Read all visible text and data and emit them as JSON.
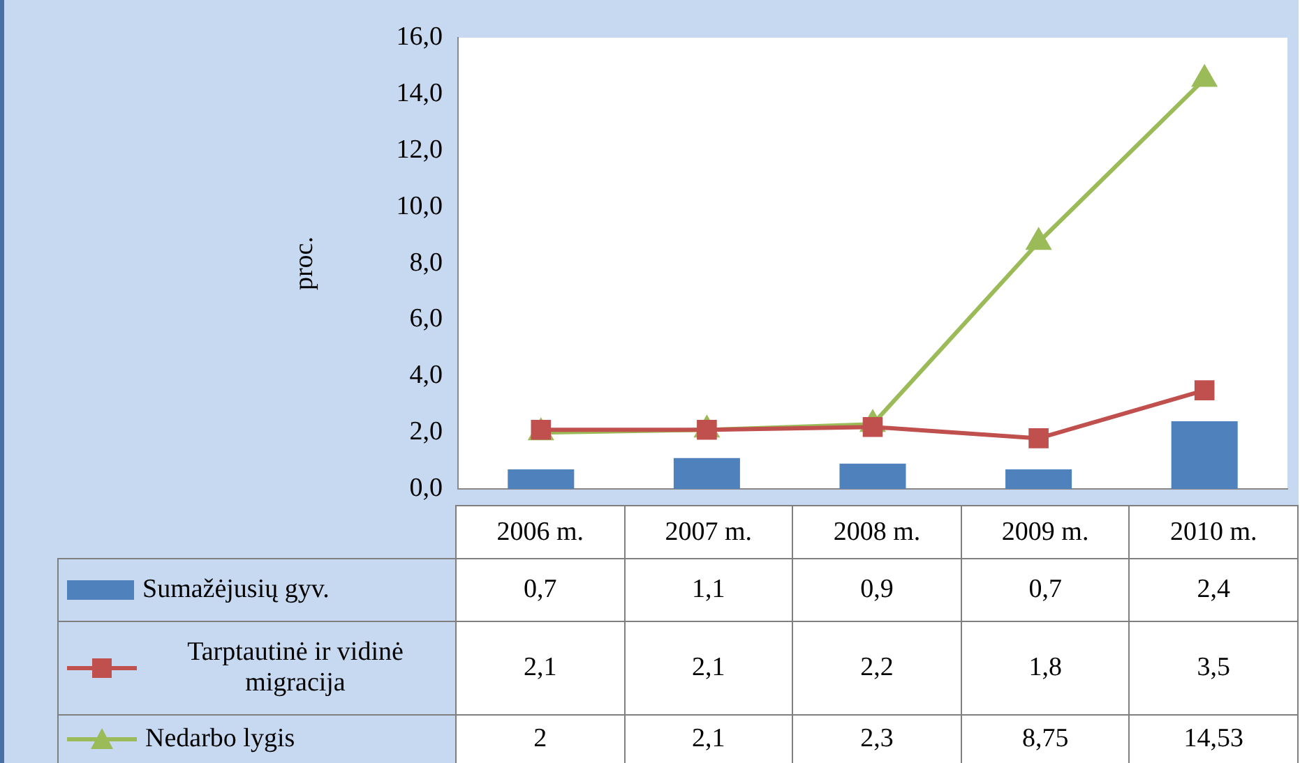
{
  "chart_data": {
    "type": "bar",
    "ylabel": "proc.",
    "categories": [
      "2006 m.",
      "2007 m.",
      "2008 m.",
      "2009 m.",
      "2010 m."
    ],
    "ylim": [
      0,
      16
    ],
    "yticks": [
      {
        "value": 0,
        "label": "0,0"
      },
      {
        "value": 2,
        "label": "2,0"
      },
      {
        "value": 4,
        "label": "4,0"
      },
      {
        "value": 6,
        "label": "6,0"
      },
      {
        "value": 8,
        "label": "8,0"
      },
      {
        "value": 10,
        "label": "10,0"
      },
      {
        "value": 12,
        "label": "12,0"
      },
      {
        "value": 14,
        "label": "14,0"
      },
      {
        "value": 16,
        "label": "16,0"
      }
    ],
    "grid": false,
    "legend": "bottom",
    "series": [
      {
        "name": "Sumažėjusių gyv.",
        "color": "#4f81bd",
        "values": [
          0.7,
          1.1,
          0.9,
          0.7,
          2.4
        ],
        "value_labels": [
          "0,7",
          "1,1",
          "0,9",
          "0,7",
          "2,4"
        ]
      },
      {
        "name": "Tarptautinė ir vidinė migracija",
        "type": "line",
        "marker": "square",
        "color": "#c0504d",
        "values": [
          2.1,
          2.1,
          2.2,
          1.8,
          3.5
        ],
        "value_labels": [
          "2,1",
          "2,1",
          "2,2",
          "1,8",
          "3,5"
        ]
      },
      {
        "name": "Nedarbo lygis",
        "type": "line",
        "marker": "triangle",
        "color": "#9bbb59",
        "values": [
          2,
          2.1,
          2.3,
          8.75,
          14.53
        ],
        "value_labels": [
          "2",
          "2,1",
          "2,3",
          "8,75",
          "14,53"
        ]
      }
    ]
  }
}
